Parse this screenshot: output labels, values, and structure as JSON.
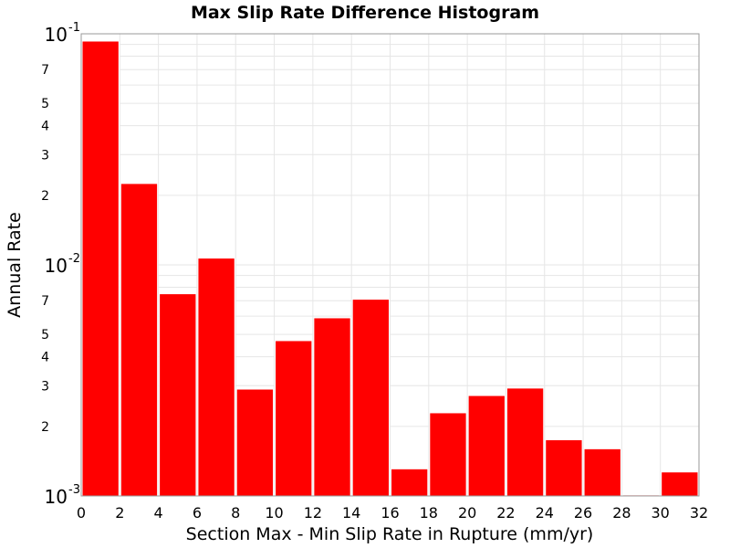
{
  "chart_data": {
    "type": "bar",
    "title": "Max Slip Rate Difference Histogram",
    "xlabel": "Section Max - Min Slip Rate in Rupture (mm/yr)",
    "ylabel": "Annual Rate",
    "x_scale": "linear",
    "y_scale": "log",
    "xlim": [
      0,
      32
    ],
    "ylim": [
      0.001,
      0.1
    ],
    "x_ticks": [
      0,
      2,
      4,
      6,
      8,
      10,
      12,
      14,
      16,
      18,
      20,
      22,
      24,
      26,
      28,
      30,
      32
    ],
    "y_decade_ticks": [
      {
        "value": 0.1,
        "base": "10",
        "exp": "-1"
      },
      {
        "value": 0.01,
        "base": "10",
        "exp": "-2"
      },
      {
        "value": 0.001,
        "base": "10",
        "exp": "-3"
      }
    ],
    "y_minor_ticks": [
      {
        "value": 0.07,
        "label": "7"
      },
      {
        "value": 0.05,
        "label": "5"
      },
      {
        "value": 0.04,
        "label": "4"
      },
      {
        "value": 0.03,
        "label": "3"
      },
      {
        "value": 0.02,
        "label": "2"
      },
      {
        "value": 0.007,
        "label": "7"
      },
      {
        "value": 0.005,
        "label": "5"
      },
      {
        "value": 0.004,
        "label": "4"
      },
      {
        "value": 0.003,
        "label": "3"
      },
      {
        "value": 0.002,
        "label": "2"
      }
    ],
    "bin_width": 2,
    "bins": [
      {
        "start": 0,
        "value": 0.093
      },
      {
        "start": 2,
        "value": 0.0225
      },
      {
        "start": 4,
        "value": 0.0075
      },
      {
        "start": 6,
        "value": 0.0107
      },
      {
        "start": 8,
        "value": 0.0029
      },
      {
        "start": 10,
        "value": 0.0047
      },
      {
        "start": 12,
        "value": 0.0059
      },
      {
        "start": 14,
        "value": 0.0071
      },
      {
        "start": 16,
        "value": 0.00131
      },
      {
        "start": 18,
        "value": 0.00229
      },
      {
        "start": 20,
        "value": 0.00272
      },
      {
        "start": 22,
        "value": 0.00293
      },
      {
        "start": 24,
        "value": 0.00175
      },
      {
        "start": 26,
        "value": 0.0016
      },
      {
        "start": 28,
        "value": 0.00101
      },
      {
        "start": 30,
        "value": 0.00127
      }
    ],
    "bar_color": "#ff0000",
    "bar_edge_color": "#ffffff",
    "grid": true,
    "grid_color": "#e6e6e6",
    "background": "#ffffff"
  }
}
